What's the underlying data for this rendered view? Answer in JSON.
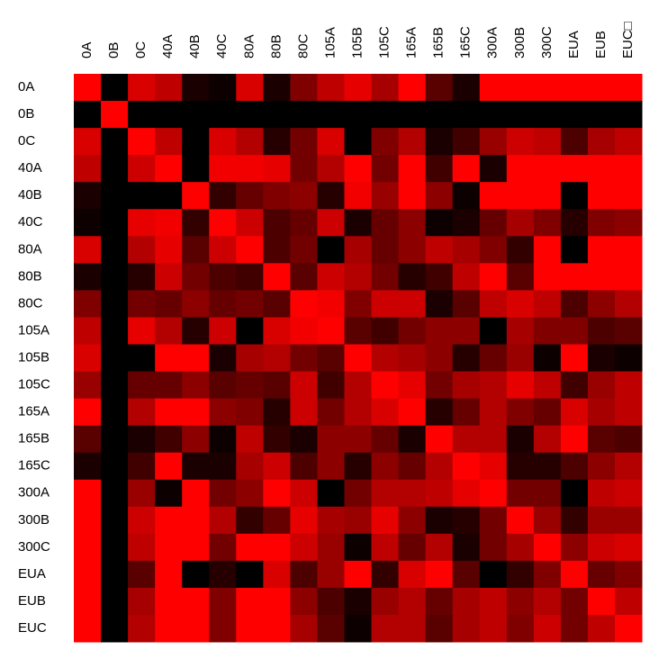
{
  "chart_data": {
    "type": "heatmap",
    "categories": [
      "0A",
      "0B",
      "0C",
      "40A",
      "40B",
      "40C",
      "80A",
      "80B",
      "80C",
      "105A",
      "105B",
      "105C",
      "165A",
      "165B",
      "165C",
      "300A",
      "300B",
      "300C",
      "EUA",
      "EUB",
      "EUC□"
    ],
    "row_labels": [
      "0A",
      "0B",
      "0C",
      "40A",
      "40B",
      "40C",
      "80A",
      "80B",
      "80C",
      "105A",
      "105B",
      "105C",
      "165A",
      "165B",
      "165C",
      "300A",
      "300B",
      "300C",
      "EUA",
      "EUB",
      "EUC"
    ],
    "colors": [
      "#000000",
      "#ff0000"
    ],
    "values": [
      [
        1,
        0,
        0.85,
        0.75,
        0.1,
        0.05,
        0.85,
        0.1,
        0.5,
        0.75,
        0.9,
        0.65,
        1,
        0.35,
        0.1,
        1,
        1,
        1,
        1,
        1,
        1
      ],
      [
        0,
        1,
        0,
        0,
        0,
        0,
        0,
        0,
        0,
        0,
        0,
        0,
        0,
        0,
        0,
        0,
        0,
        0,
        0,
        0,
        0
      ],
      [
        0.85,
        0,
        1,
        0.75,
        0,
        0.85,
        0.7,
        0.15,
        0.45,
        0.85,
        0,
        0.5,
        0.7,
        0.1,
        0.25,
        0.6,
        0.8,
        0.75,
        0.3,
        0.65,
        0.75
      ],
      [
        0.75,
        0,
        0.8,
        1,
        0,
        0.95,
        0.95,
        0.9,
        0.45,
        0.7,
        1,
        0.45,
        1,
        0.25,
        1,
        0.1,
        1,
        1,
        1,
        1,
        1
      ],
      [
        0.1,
        0,
        0,
        0,
        1,
        0.2,
        0.4,
        0.5,
        0.55,
        0.15,
        0.95,
        0.6,
        1,
        0.55,
        0.05,
        1,
        1,
        1,
        0,
        1,
        1
      ],
      [
        0.05,
        0,
        0.9,
        0.95,
        0.2,
        1,
        0.8,
        0.3,
        0.4,
        0.8,
        0.1,
        0.4,
        0.55,
        0.05,
        0.1,
        0.4,
        0.65,
        0.5,
        0.15,
        0.5,
        0.55
      ],
      [
        0.85,
        0,
        0.7,
        0.9,
        0.35,
        0.8,
        1,
        0.3,
        0.45,
        0,
        0.65,
        0.4,
        0.55,
        0.75,
        0.65,
        0.5,
        0.2,
        1,
        0,
        1,
        1
      ],
      [
        0.1,
        0,
        0.15,
        0.8,
        0.45,
        0.3,
        0.25,
        1,
        0.35,
        0.8,
        0.7,
        0.45,
        0.15,
        0.25,
        0.75,
        1,
        0.35,
        1,
        1,
        1,
        1
      ],
      [
        0.5,
        0,
        0.45,
        0.4,
        0.55,
        0.4,
        0.45,
        0.35,
        1,
        0.95,
        0.5,
        0.8,
        0.8,
        0.1,
        0.35,
        0.75,
        0.85,
        0.75,
        0.3,
        0.55,
        0.7
      ],
      [
        0.75,
        0,
        0.9,
        0.7,
        0.15,
        0.8,
        0,
        0.85,
        0.95,
        1,
        0.35,
        0.25,
        0.45,
        0.55,
        0.55,
        0,
        0.65,
        0.5,
        0.5,
        0.3,
        0.35
      ],
      [
        0.85,
        0,
        0,
        1,
        1,
        0.1,
        0.65,
        0.7,
        0.45,
        0.35,
        1,
        0.7,
        0.65,
        0.55,
        0.15,
        0.4,
        0.6,
        0.05,
        1,
        0.1,
        0.05
      ],
      [
        0.6,
        0,
        0.4,
        0.4,
        0.55,
        0.35,
        0.4,
        0.35,
        0.8,
        0.25,
        0.7,
        1,
        0.9,
        0.45,
        0.65,
        0.7,
        0.9,
        0.75,
        0.25,
        0.6,
        0.75
      ],
      [
        1,
        0,
        0.7,
        1,
        1,
        0.55,
        0.5,
        0.15,
        0.8,
        0.45,
        0.7,
        0.85,
        1,
        0.15,
        0.4,
        0.7,
        0.5,
        0.4,
        0.85,
        0.65,
        0.75
      ],
      [
        0.35,
        0,
        0.1,
        0.25,
        0.55,
        0.05,
        0.75,
        0.2,
        0.1,
        0.55,
        0.55,
        0.4,
        0.1,
        1,
        0.7,
        0.7,
        0.1,
        0.7,
        1,
        0.35,
        0.3
      ],
      [
        0.1,
        0,
        0.25,
        1,
        0.1,
        0.1,
        0.65,
        0.8,
        0.3,
        0.55,
        0.15,
        0.55,
        0.4,
        0.7,
        1,
        0.9,
        0.15,
        0.15,
        0.3,
        0.55,
        0.7
      ],
      [
        1,
        0,
        0.6,
        0.05,
        1,
        0.45,
        0.55,
        1,
        0.8,
        0,
        0.45,
        0.7,
        0.7,
        0.75,
        0.9,
        1,
        0.45,
        0.45,
        0,
        0.75,
        0.8
      ],
      [
        1,
        0,
        0.8,
        1,
        1,
        0.7,
        0.2,
        0.4,
        0.9,
        0.65,
        0.6,
        0.9,
        0.55,
        0.1,
        0.15,
        0.45,
        1,
        0.6,
        0.2,
        0.6,
        0.6
      ],
      [
        1,
        0,
        0.75,
        1,
        1,
        0.45,
        1,
        1,
        0.8,
        0.6,
        0.05,
        0.75,
        0.4,
        0.7,
        0.1,
        0.45,
        0.65,
        1,
        0.55,
        0.8,
        0.85
      ],
      [
        1,
        0,
        0.35,
        1,
        0,
        0.15,
        0,
        0.85,
        0.3,
        0.6,
        1,
        0.2,
        0.85,
        1,
        0.35,
        0,
        0.2,
        0.5,
        1,
        0.4,
        0.5
      ],
      [
        1,
        0,
        0.65,
        1,
        1,
        0.5,
        1,
        1,
        0.55,
        0.3,
        0.1,
        0.6,
        0.7,
        0.4,
        0.65,
        0.75,
        0.55,
        0.7,
        0.45,
        1,
        0.75
      ],
      [
        1,
        0,
        0.7,
        1,
        1,
        0.5,
        1,
        1,
        0.65,
        0.35,
        0.05,
        0.7,
        0.7,
        0.35,
        0.65,
        0.75,
        0.5,
        0.8,
        0.45,
        0.75,
        1
      ]
    ]
  }
}
